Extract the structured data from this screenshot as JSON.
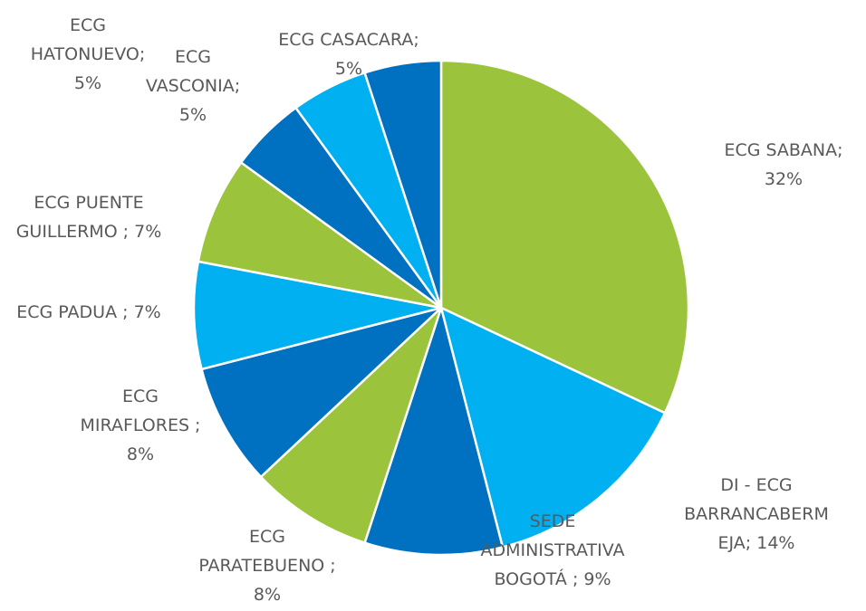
{
  "chart_data": {
    "type": "pie",
    "categories": [
      "ECG SABANA;",
      "DI - ECG BARRANCABERMEJA;",
      "SEDE ADMINISTRATIVA BOGOTÁ ;",
      "ECG PARATEBUENO ;",
      "ECG MIRAFLORES ;",
      "ECG PADUA ;",
      "ECG PUENTE GUILLERMO ;",
      "ECG HATONUEVO;",
      "ECG VASCONIA;",
      "ECG CASACARA;"
    ],
    "values": [
      32,
      14,
      9,
      8,
      8,
      7,
      7,
      5,
      5,
      5
    ],
    "value_labels": [
      "32%",
      "14%",
      "9%",
      "8%",
      "8%",
      "7%",
      "7%",
      "5%",
      "5%",
      "5%"
    ],
    "colors": [
      "#9bc33c",
      "#00b0f0",
      "#0070c0",
      "#9bc33c",
      "#0070c0",
      "#00b0f0",
      "#9bc33c",
      "#0070c0",
      "#00b0f0",
      "#0070c0"
    ]
  }
}
